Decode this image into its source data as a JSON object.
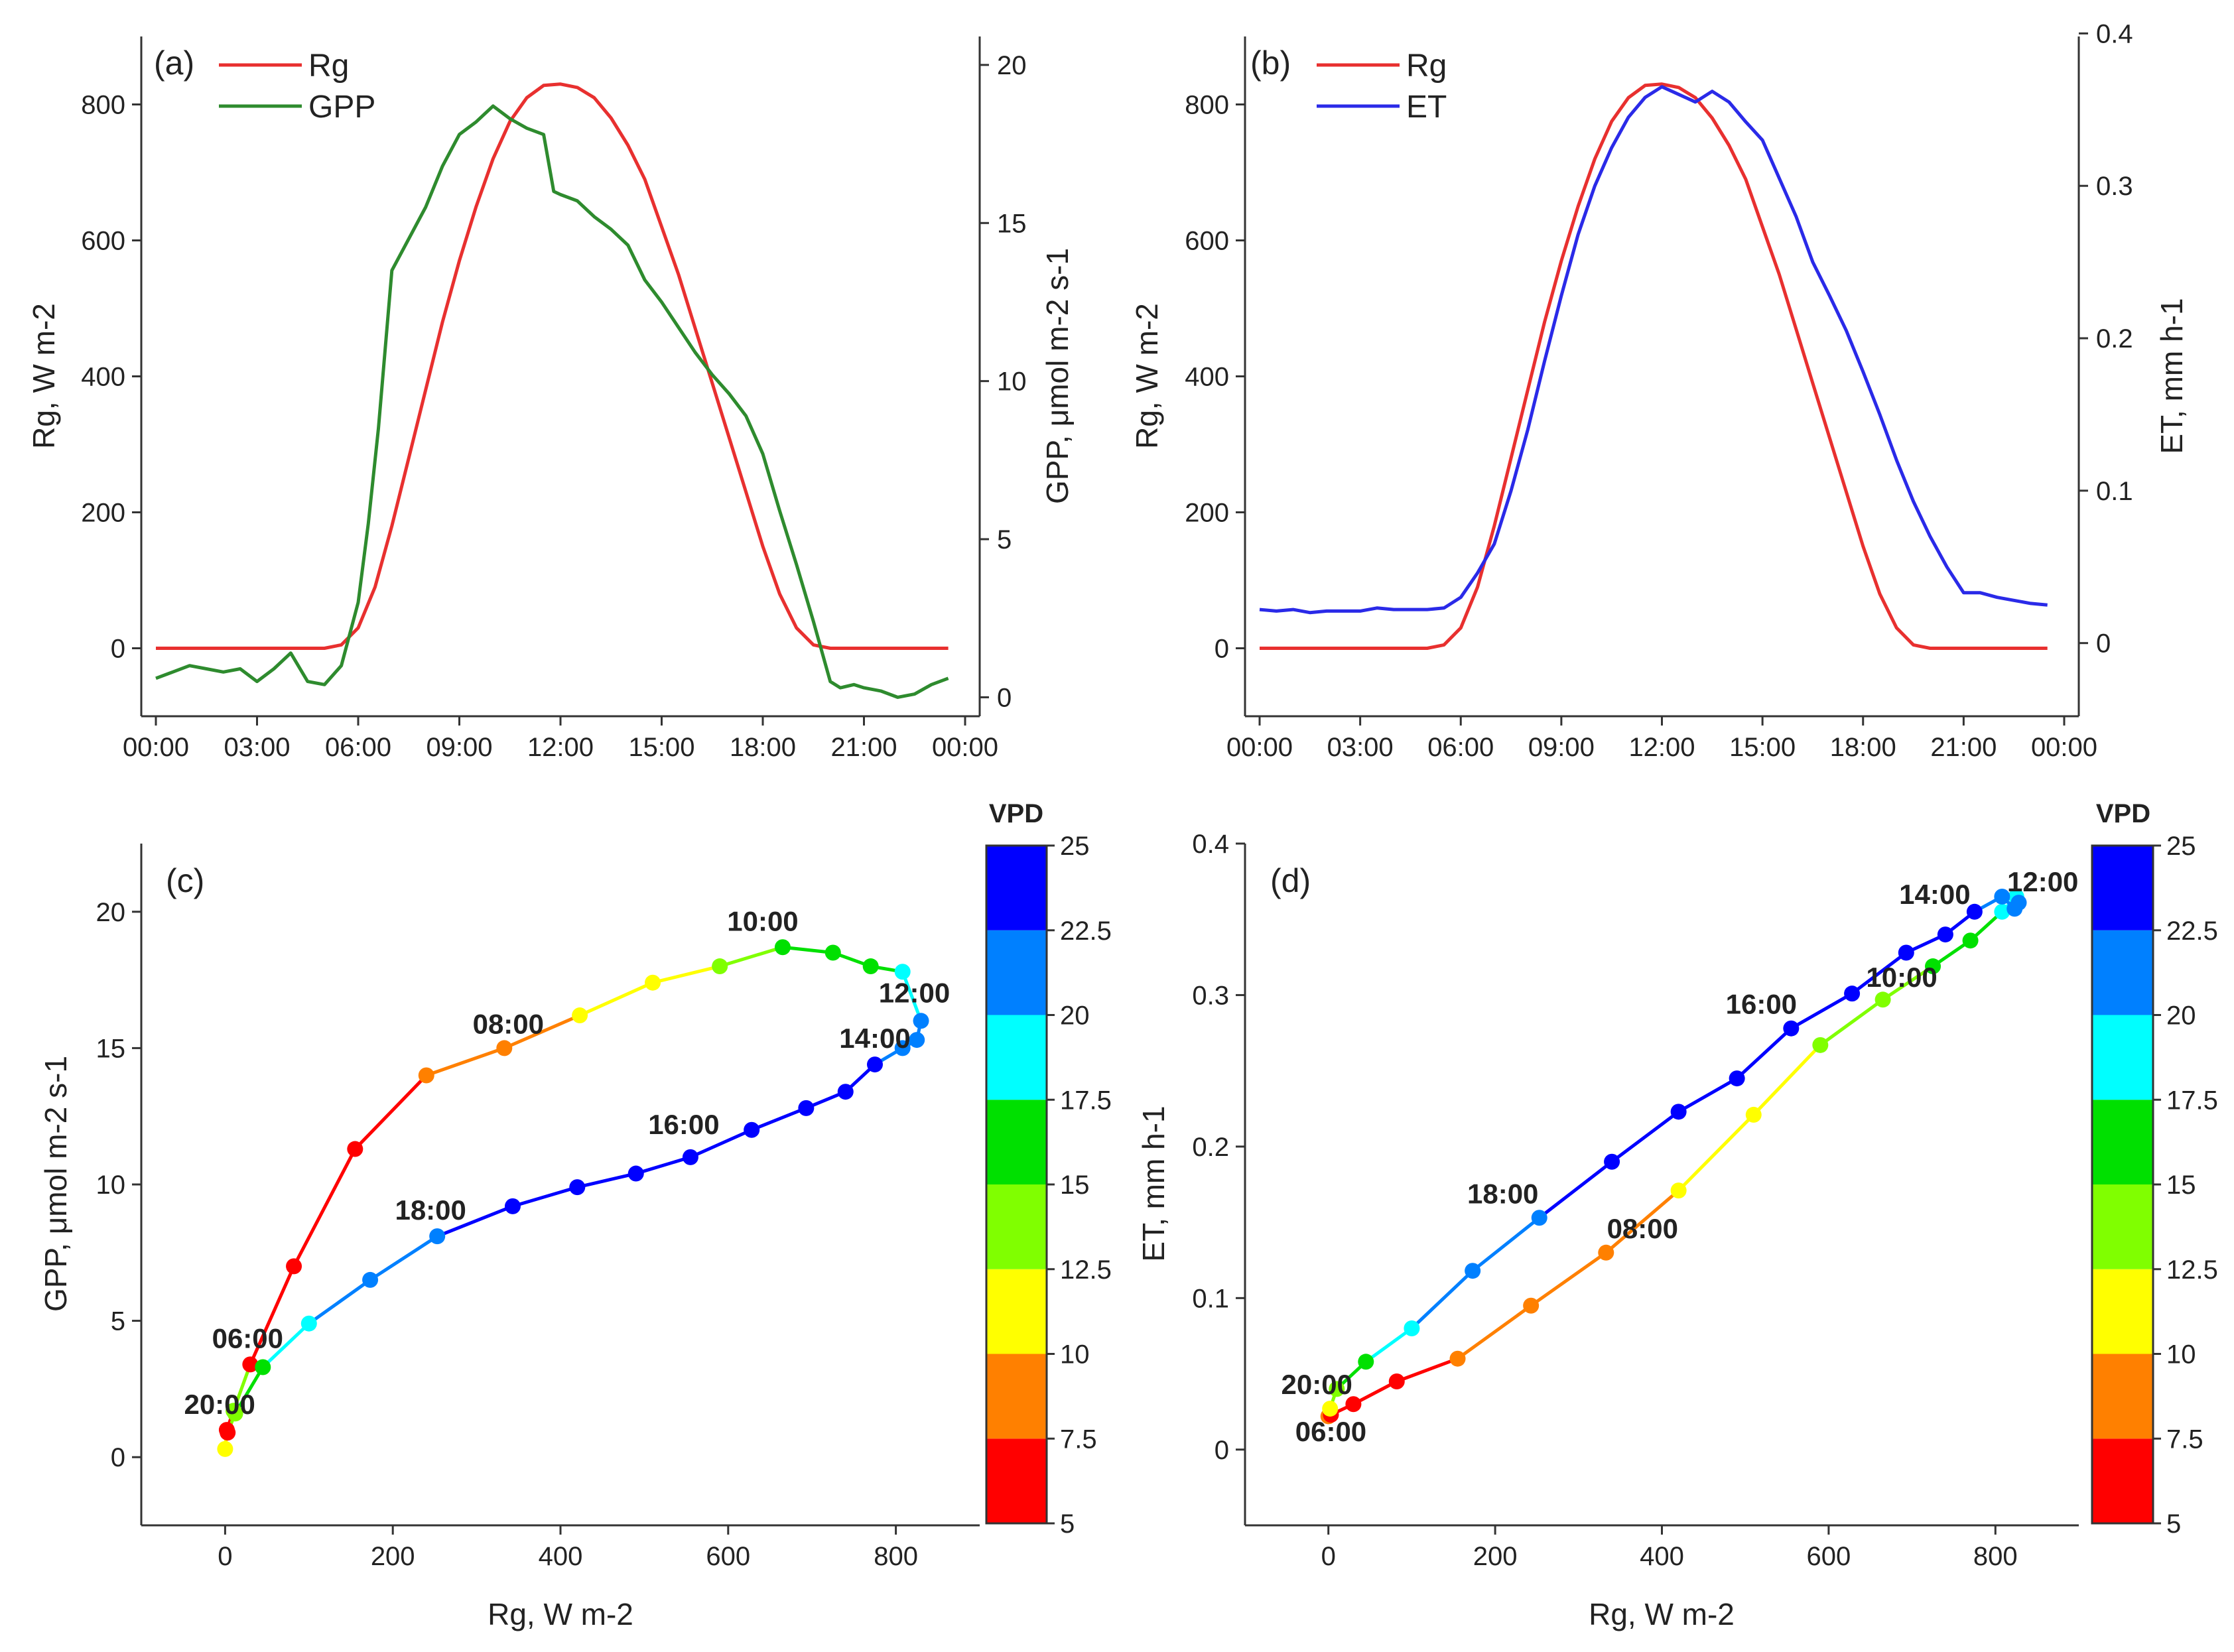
{
  "colors": {
    "rg": "#e8302f",
    "gpp": "#2e8b2e",
    "et": "#2a2ae8",
    "vpd_bins": [
      "#ff0000",
      "#ff8000",
      "#ffff00",
      "#80ff00",
      "#00e000",
      "#00ffff",
      "#0080ff",
      "#0000ff"
    ]
  },
  "chart_data": [
    {
      "panel": "(a)",
      "type": "line",
      "x_ticks": [
        "00:00",
        "03:00",
        "06:00",
        "09:00",
        "12:00",
        "15:00",
        "18:00",
        "21:00",
        "00:00"
      ],
      "xlim_hours": [
        0,
        24
      ],
      "ylabel": "Rg, W m-2",
      "ylim": [
        -100,
        900
      ],
      "y_ticks": [
        0,
        200,
        400,
        600,
        800
      ],
      "y2label": "GPP, μmol m-2 s-1",
      "y2lim": [
        -0.6,
        20.9
      ],
      "y2_ticks": [
        0,
        5,
        10,
        15,
        20
      ],
      "legend": [
        "Rg",
        "GPP"
      ],
      "series": [
        {
          "name": "Rg",
          "axis": "left",
          "hours": [
            0,
            5,
            5.5,
            6,
            6.5,
            7,
            7.5,
            8,
            8.5,
            9,
            9.5,
            10,
            10.5,
            11,
            11.5,
            12,
            12.5,
            13,
            13.5,
            14,
            14.5,
            15,
            15.5,
            16,
            16.5,
            17,
            17.5,
            18,
            18.5,
            19,
            19.5,
            20,
            20.5,
            21,
            23.5
          ],
          "values": [
            0,
            0,
            5,
            30,
            90,
            180,
            280,
            380,
            480,
            570,
            650,
            720,
            775,
            810,
            828,
            830,
            825,
            810,
            780,
            740,
            690,
            620,
            550,
            470,
            390,
            310,
            230,
            150,
            80,
            30,
            5,
            0,
            0,
            0,
            0
          ]
        },
        {
          "name": "GPP",
          "axis": "right",
          "hours": [
            0,
            0.5,
            1,
            1.5,
            2,
            2.5,
            3,
            3.5,
            4,
            4.5,
            5,
            5.5,
            6,
            6.3,
            6.6,
            7,
            7.5,
            8,
            8.5,
            9,
            9.5,
            10,
            10.5,
            11,
            11.5,
            11.8,
            12,
            12.5,
            13,
            13.5,
            14,
            14.5,
            15,
            15.5,
            16,
            16.5,
            17,
            17.5,
            18,
            18.5,
            19,
            19.5,
            20,
            20.3,
            20.7,
            21,
            21.5,
            22,
            22.5,
            23,
            23.5
          ],
          "values": [
            0.6,
            0.8,
            1.0,
            0.9,
            0.8,
            0.9,
            0.5,
            0.9,
            1.4,
            0.5,
            0.4,
            1.0,
            3.0,
            5.5,
            8.5,
            13.5,
            14.5,
            15.5,
            16.8,
            17.8,
            18.2,
            18.7,
            18.3,
            18.0,
            17.8,
            16.0,
            15.9,
            15.7,
            15.2,
            14.8,
            14.3,
            13.2,
            12.5,
            11.7,
            10.9,
            10.2,
            9.6,
            8.9,
            7.7,
            5.9,
            4.2,
            2.4,
            0.5,
            0.3,
            0.4,
            0.3,
            0.2,
            0.0,
            0.1,
            0.4,
            0.6
          ]
        }
      ]
    },
    {
      "panel": "(b)",
      "type": "line",
      "x_ticks": [
        "00:00",
        "03:00",
        "06:00",
        "09:00",
        "12:00",
        "15:00",
        "18:00",
        "21:00",
        "00:00"
      ],
      "xlim_hours": [
        0,
        24
      ],
      "ylabel": "Rg, W m-2",
      "ylim": [
        -100,
        900
      ],
      "y_ticks": [
        0,
        200,
        400,
        600,
        800
      ],
      "y2label": "ET, mm h-1",
      "y2lim": [
        -0.048,
        0.398
      ],
      "y2_ticks": [
        0,
        0.1,
        0.2,
        0.3,
        0.4
      ],
      "legend": [
        "Rg",
        "ET"
      ],
      "series": [
        {
          "name": "Rg",
          "axis": "left",
          "hours": [
            0,
            5,
            5.5,
            6,
            6.5,
            7,
            7.5,
            8,
            8.5,
            9,
            9.5,
            10,
            10.5,
            11,
            11.5,
            12,
            12.5,
            13,
            13.5,
            14,
            14.5,
            15,
            15.5,
            16,
            16.5,
            17,
            17.5,
            18,
            18.5,
            19,
            19.5,
            20,
            20.5,
            21,
            23.5
          ],
          "values": [
            0,
            0,
            5,
            30,
            90,
            180,
            280,
            380,
            480,
            570,
            650,
            720,
            775,
            810,
            828,
            830,
            825,
            810,
            780,
            740,
            690,
            620,
            550,
            470,
            390,
            310,
            230,
            150,
            80,
            30,
            5,
            0,
            0,
            0,
            0
          ]
        },
        {
          "name": "ET",
          "axis": "right",
          "hours": [
            0,
            0.5,
            1,
            1.5,
            2,
            2.5,
            3,
            3.5,
            4,
            4.5,
            5,
            5.5,
            6,
            6.5,
            7,
            7.5,
            8,
            8.5,
            9,
            9.5,
            10,
            10.5,
            11,
            11.5,
            12,
            12.5,
            13,
            13.5,
            14,
            14.5,
            15,
            15.5,
            16,
            16.5,
            17,
            17.5,
            18,
            18.5,
            19,
            19.5,
            20,
            20.5,
            21,
            21.5,
            22,
            22.5,
            23,
            23.5
          ],
          "values": [
            0.022,
            0.021,
            0.022,
            0.02,
            0.021,
            0.021,
            0.021,
            0.023,
            0.022,
            0.022,
            0.022,
            0.023,
            0.03,
            0.046,
            0.065,
            0.1,
            0.14,
            0.185,
            0.228,
            0.268,
            0.3,
            0.325,
            0.345,
            0.358,
            0.365,
            0.36,
            0.355,
            0.362,
            0.355,
            0.342,
            0.33,
            0.305,
            0.28,
            0.25,
            0.228,
            0.205,
            0.178,
            0.15,
            0.12,
            0.093,
            0.07,
            0.05,
            0.033,
            0.033,
            0.03,
            0.028,
            0.026,
            0.025
          ]
        }
      ]
    },
    {
      "panel": "(c)",
      "type": "scatter",
      "xlabel": "Rg, W m-2",
      "xlim": [
        -100,
        900
      ],
      "x_ticks": [
        0,
        200,
        400,
        600,
        800
      ],
      "ylabel": "GPP, μmol m-2 s-1",
      "ylim": [
        -2.5,
        22.5
      ],
      "y_ticks": [
        0,
        5,
        10,
        15,
        20
      ],
      "colorbar": {
        "label": "VPD",
        "ticks": [
          "5",
          "7.5",
          "10",
          "12.5",
          "15",
          "17.5",
          "20",
          "22.5",
          "25"
        ],
        "range": [
          5,
          25
        ]
      },
      "points": [
        {
          "x": 0,
          "y": 0.3,
          "vpd": 11
        },
        {
          "x": 2,
          "y": 1.0,
          "vpd": 6
        },
        {
          "x": 10,
          "y": 1.7,
          "vpd": 14
        },
        {
          "x": 30,
          "y": 3.4,
          "vpd": 6
        },
        {
          "x": 82,
          "y": 7.0,
          "vpd": 6
        },
        {
          "x": 155,
          "y": 11.3,
          "vpd": 7
        },
        {
          "x": 240,
          "y": 14.0,
          "vpd": 8.5
        },
        {
          "x": 333,
          "y": 15.0,
          "vpd": 9
        },
        {
          "x": 423,
          "y": 16.2,
          "vpd": 11
        },
        {
          "x": 510,
          "y": 17.4,
          "vpd": 12
        },
        {
          "x": 590,
          "y": 18.0,
          "vpd": 14
        },
        {
          "x": 665,
          "y": 18.7,
          "vpd": 15
        },
        {
          "x": 725,
          "y": 18.5,
          "vpd": 16
        },
        {
          "x": 770,
          "y": 18.0,
          "vpd": 16
        },
        {
          "x": 808,
          "y": 17.8,
          "vpd": 18.5
        },
        {
          "x": 830,
          "y": 16.0,
          "vpd": 21
        },
        {
          "x": 825,
          "y": 15.3,
          "vpd": 21
        },
        {
          "x": 808,
          "y": 15.0,
          "vpd": 21
        },
        {
          "x": 775,
          "y": 14.4,
          "vpd": 24
        },
        {
          "x": 740,
          "y": 13.4,
          "vpd": 24
        },
        {
          "x": 693,
          "y": 12.8,
          "vpd": 24
        },
        {
          "x": 628,
          "y": 12.0,
          "vpd": 24
        },
        {
          "x": 555,
          "y": 11.0,
          "vpd": 24
        },
        {
          "x": 490,
          "y": 10.4,
          "vpd": 24
        },
        {
          "x": 420,
          "y": 9.9,
          "vpd": 24
        },
        {
          "x": 343,
          "y": 9.2,
          "vpd": 24
        },
        {
          "x": 253,
          "y": 8.1,
          "vpd": 22
        },
        {
          "x": 173,
          "y": 6.5,
          "vpd": 21
        },
        {
          "x": 100,
          "y": 4.9,
          "vpd": 18.5
        },
        {
          "x": 45,
          "y": 3.3,
          "vpd": 16
        },
        {
          "x": 12,
          "y": 1.6,
          "vpd": 14
        },
        {
          "x": 3,
          "y": 0.9,
          "vpd": 6
        }
      ],
      "annotations": [
        {
          "text": "06:00",
          "x": 30,
          "y": 3.4
        },
        {
          "text": "20:00",
          "x": 3,
          "y": 0.9
        },
        {
          "text": "08:00",
          "x": 333,
          "y": 15.0
        },
        {
          "text": "10:00",
          "x": 665,
          "y": 18.7
        },
        {
          "text": "12:00",
          "x": 830,
          "y": 16.0
        },
        {
          "text": "14:00",
          "x": 775,
          "y": 14.4
        },
        {
          "text": "16:00",
          "x": 555,
          "y": 11.0
        },
        {
          "text": "18:00",
          "x": 253,
          "y": 8.1
        }
      ]
    },
    {
      "panel": "(d)",
      "type": "scatter",
      "xlabel": "Rg, W m-2",
      "xlim": [
        -100,
        900
      ],
      "x_ticks": [
        0,
        200,
        400,
        600,
        800
      ],
      "ylabel": "ET, mm h-1",
      "ylim": [
        -0.05,
        0.4
      ],
      "y_ticks": [
        0,
        0.1,
        0.2,
        0.3,
        0.4
      ],
      "colorbar": {
        "label": "VPD",
        "ticks": [
          "5",
          "7.5",
          "10",
          "12.5",
          "15",
          "17.5",
          "20",
          "22.5",
          "25"
        ],
        "range": [
          5,
          25
        ]
      },
      "points": [
        {
          "x": 0,
          "y": 0.022,
          "vpd": 9
        },
        {
          "x": 3,
          "y": 0.023,
          "vpd": 6
        },
        {
          "x": 30,
          "y": 0.03,
          "vpd": 6
        },
        {
          "x": 82,
          "y": 0.045,
          "vpd": 6
        },
        {
          "x": 155,
          "y": 0.06,
          "vpd": 8
        },
        {
          "x": 243,
          "y": 0.095,
          "vpd": 9
        },
        {
          "x": 333,
          "y": 0.13,
          "vpd": 9
        },
        {
          "x": 420,
          "y": 0.171,
          "vpd": 11
        },
        {
          "x": 510,
          "y": 0.221,
          "vpd": 12
        },
        {
          "x": 590,
          "y": 0.267,
          "vpd": 13
        },
        {
          "x": 665,
          "y": 0.297,
          "vpd": 14
        },
        {
          "x": 725,
          "y": 0.319,
          "vpd": 15
        },
        {
          "x": 770,
          "y": 0.336,
          "vpd": 16
        },
        {
          "x": 808,
          "y": 0.355,
          "vpd": 18.5
        },
        {
          "x": 825,
          "y": 0.365,
          "vpd": 19
        },
        {
          "x": 828,
          "y": 0.361,
          "vpd": 21
        },
        {
          "x": 823,
          "y": 0.357,
          "vpd": 21
        },
        {
          "x": 808,
          "y": 0.365,
          "vpd": 22
        },
        {
          "x": 775,
          "y": 0.355,
          "vpd": 24
        },
        {
          "x": 740,
          "y": 0.34,
          "vpd": 24
        },
        {
          "x": 693,
          "y": 0.328,
          "vpd": 24
        },
        {
          "x": 628,
          "y": 0.301,
          "vpd": 24
        },
        {
          "x": 555,
          "y": 0.278,
          "vpd": 24
        },
        {
          "x": 490,
          "y": 0.245,
          "vpd": 24
        },
        {
          "x": 420,
          "y": 0.223,
          "vpd": 24
        },
        {
          "x": 340,
          "y": 0.19,
          "vpd": 24
        },
        {
          "x": 253,
          "y": 0.153,
          "vpd": 22
        },
        {
          "x": 173,
          "y": 0.118,
          "vpd": 21
        },
        {
          "x": 100,
          "y": 0.08,
          "vpd": 19
        },
        {
          "x": 45,
          "y": 0.058,
          "vpd": 16
        },
        {
          "x": 10,
          "y": 0.04,
          "vpd": 14
        },
        {
          "x": 2,
          "y": 0.027,
          "vpd": 11
        }
      ],
      "annotations": [
        {
          "text": "20:00",
          "x": 2,
          "y": 0.027
        },
        {
          "text": "06:00",
          "x": 3,
          "y": 0.023
        },
        {
          "text": "08:00",
          "x": 333,
          "y": 0.13
        },
        {
          "text": "18:00",
          "x": 253,
          "y": 0.153
        },
        {
          "text": "16:00",
          "x": 555,
          "y": 0.278
        },
        {
          "text": "10:00",
          "x": 628,
          "y": 0.301
        },
        {
          "text": "14:00",
          "x": 775,
          "y": 0.355
        },
        {
          "text": "12:00",
          "x": 825,
          "y": 0.365
        }
      ]
    }
  ]
}
